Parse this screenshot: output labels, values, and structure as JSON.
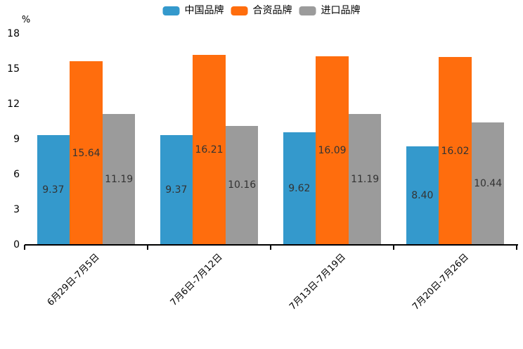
{
  "chart_data": {
    "type": "bar",
    "title": "",
    "unit_label": "%",
    "categories": [
      "6月29日-7月5日",
      "7月6日-7月12日",
      "7月13日-7月19日",
      "7月20日-7月26日"
    ],
    "series": [
      {
        "name": "中国品牌",
        "color": "#3499CC",
        "values": [
          9.37,
          9.37,
          9.62,
          8.4
        ]
      },
      {
        "name": "合资品牌",
        "color": "#FF6D0D",
        "values": [
          15.64,
          16.21,
          16.09,
          16.02
        ]
      },
      {
        "name": "进口品牌",
        "color": "#9B9B9B",
        "values": [
          11.19,
          10.16,
          11.19,
          10.44
        ]
      }
    ],
    "y_ticks": [
      0,
      3,
      6,
      9,
      12,
      15,
      18
    ],
    "ylim": [
      0,
      18
    ],
    "value_label_decimals": 2,
    "grid": false,
    "legend_position": "top",
    "colors": {
      "axis": "#000000",
      "tick_label": "#000000",
      "value_label": "#333333",
      "background": "#ffffff"
    }
  }
}
